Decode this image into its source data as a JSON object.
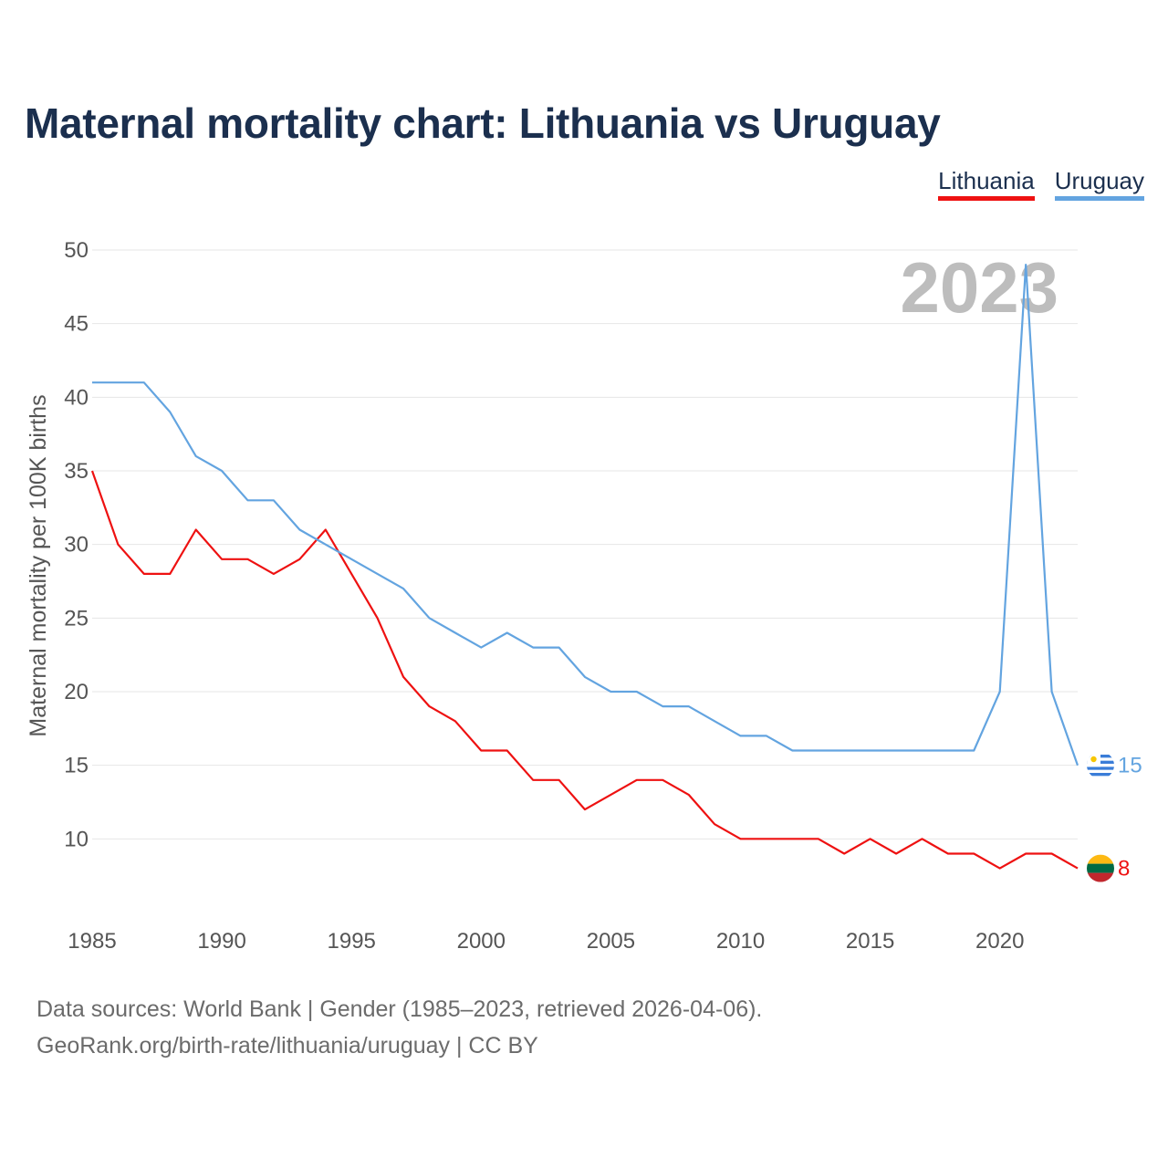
{
  "title": "Maternal mortality chart: Lithuania vs Uruguay",
  "legend": [
    {
      "name": "Lithuania",
      "color": "#ee1111"
    },
    {
      "name": "Uruguay",
      "color": "#63a4e0"
    }
  ],
  "source": {
    "line1": "Data sources: World Bank | Gender (1985–2023, retrieved 2026-04-06).",
    "line2": "GeoRank.org/birth-rate/lithuania/uruguay | CC BY"
  },
  "chart_data": {
    "type": "line",
    "title": "Maternal mortality chart: Lithuania vs Uruguay",
    "xlabel": "",
    "ylabel": "Maternal mortality per 100K births",
    "year_watermark": "2023",
    "xlim": [
      1985,
      2023
    ],
    "ylim": [
      5,
      50
    ],
    "x_ticks": [
      1985,
      1990,
      1995,
      2000,
      2005,
      2010,
      2015,
      2020
    ],
    "y_ticks": [
      10,
      15,
      20,
      25,
      30,
      35,
      40,
      45,
      50
    ],
    "x": [
      1985,
      1986,
      1987,
      1988,
      1989,
      1990,
      1991,
      1992,
      1993,
      1994,
      1995,
      1996,
      1997,
      1998,
      1999,
      2000,
      2001,
      2002,
      2003,
      2004,
      2005,
      2006,
      2007,
      2008,
      2009,
      2010,
      2011,
      2012,
      2013,
      2014,
      2015,
      2016,
      2017,
      2018,
      2019,
      2020,
      2021,
      2022,
      2023
    ],
    "series": [
      {
        "name": "Lithuania",
        "color": "#ee1111",
        "end_label": "8",
        "values": [
          35,
          30,
          28,
          28,
          31,
          29,
          29,
          28,
          29,
          31,
          28,
          25,
          21,
          19,
          18,
          16,
          16,
          14,
          14,
          12,
          13,
          14,
          14,
          13,
          11,
          10,
          10,
          10,
          10,
          9,
          10,
          9,
          10,
          9,
          9,
          8,
          9,
          9,
          8
        ]
      },
      {
        "name": "Uruguay",
        "color": "#63a4e0",
        "end_label": "15",
        "values": [
          41,
          41,
          41,
          39,
          36,
          35,
          33,
          33,
          31,
          30,
          29,
          28,
          27,
          25,
          24,
          23,
          24,
          23,
          23,
          21,
          20,
          20,
          19,
          19,
          18,
          17,
          17,
          16,
          16,
          16,
          16,
          16,
          16,
          16,
          16,
          20,
          49,
          20,
          15
        ]
      }
    ]
  }
}
